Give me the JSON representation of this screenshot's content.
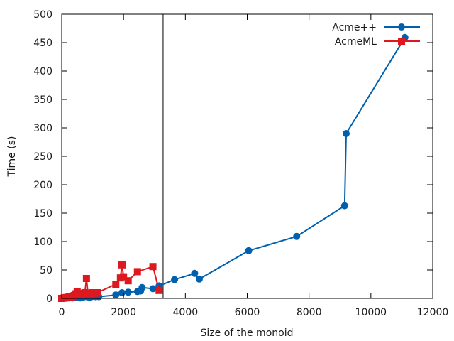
{
  "chart_data": {
    "type": "line",
    "title": "",
    "xlabel": "Size of the monoid",
    "ylabel": "Time (s)",
    "xlim": [
      0,
      12000
    ],
    "ylim": [
      0,
      500
    ],
    "x_ticks": [
      0,
      2000,
      4000,
      6000,
      8000,
      10000,
      12000
    ],
    "y_ticks": [
      0,
      50,
      100,
      150,
      200,
      250,
      300,
      350,
      400,
      450,
      500
    ],
    "grid": false,
    "legend_position": "top-right",
    "vertical_line_x": 3280,
    "series": [
      {
        "name": "Acme++",
        "color": "#0060ad",
        "marker": "circle",
        "points": [
          [
            0,
            0
          ],
          [
            50,
            0
          ],
          [
            100,
            0.5
          ],
          [
            150,
            0.5
          ],
          [
            200,
            1
          ],
          [
            250,
            1
          ],
          [
            300,
            1.5
          ],
          [
            350,
            1
          ],
          [
            400,
            2
          ],
          [
            450,
            2
          ],
          [
            500,
            2
          ],
          [
            550,
            1.5
          ],
          [
            600,
            1
          ],
          [
            650,
            2
          ],
          [
            700,
            2.5
          ],
          [
            750,
            3
          ],
          [
            800,
            3.5
          ],
          [
            850,
            2.5
          ],
          [
            900,
            2
          ],
          [
            950,
            3
          ],
          [
            1000,
            3.5
          ],
          [
            1100,
            3
          ],
          [
            1200,
            3
          ],
          [
            1750,
            6
          ],
          [
            1950,
            10
          ],
          [
            2150,
            11
          ],
          [
            2450,
            12
          ],
          [
            2550,
            13
          ],
          [
            2600,
            19
          ],
          [
            2950,
            17
          ],
          [
            3150,
            22
          ],
          [
            3650,
            33
          ],
          [
            4300,
            44
          ],
          [
            4450,
            34
          ],
          [
            6050,
            84
          ],
          [
            7600,
            109
          ],
          [
            9150,
            163
          ],
          [
            9200,
            290
          ],
          [
            11100,
            459
          ]
        ]
      },
      {
        "name": "AcmeML",
        "color": "#dd181f",
        "marker": "square",
        "points": [
          [
            0,
            0
          ],
          [
            50,
            0.5
          ],
          [
            100,
            1
          ],
          [
            150,
            1.5
          ],
          [
            200,
            2
          ],
          [
            250,
            2.5
          ],
          [
            300,
            3
          ],
          [
            350,
            3
          ],
          [
            400,
            5
          ],
          [
            450,
            8
          ],
          [
            500,
            12
          ],
          [
            550,
            9
          ],
          [
            600,
            7
          ],
          [
            650,
            6
          ],
          [
            700,
            8
          ],
          [
            750,
            10
          ],
          [
            800,
            35
          ],
          [
            850,
            9
          ],
          [
            900,
            8
          ],
          [
            950,
            8
          ],
          [
            1000,
            10
          ],
          [
            1100,
            9
          ],
          [
            1150,
            10
          ],
          [
            1750,
            25
          ],
          [
            1900,
            36
          ],
          [
            1950,
            59
          ],
          [
            2000,
            38
          ],
          [
            2150,
            31
          ],
          [
            2450,
            47
          ],
          [
            2950,
            56
          ],
          [
            3150,
            14
          ]
        ]
      }
    ]
  }
}
